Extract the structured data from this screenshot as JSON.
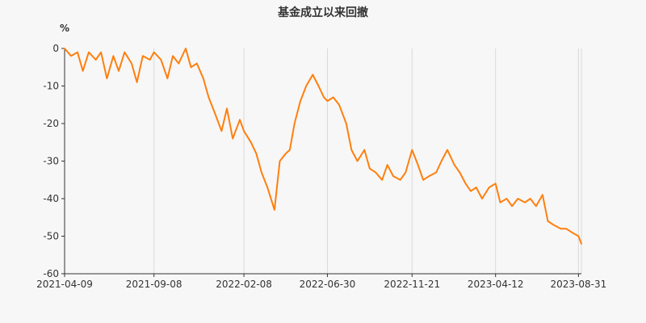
{
  "chart_data": {
    "type": "line",
    "title": "基金成立以来回撤",
    "ylabel": "%",
    "xlabel": "",
    "ylim": [
      -60,
      0
    ],
    "y_ticks": [
      "0",
      "-10",
      "-20",
      "-30",
      "-40",
      "-50",
      "-60"
    ],
    "x_ticks": [
      "2021-04-09",
      "2021-09-08",
      "2022-02-08",
      "2022-06-30",
      "2022-11-21",
      "2023-04-12",
      "2023-08-31"
    ],
    "x_start": "2021-04-09",
    "x_end": "2023-09-05",
    "grid": "vertical",
    "line_color": "#ff7f0e",
    "series": [
      {
        "name": "",
        "x": [
          "2021-04-09",
          "2021-04-20",
          "2021-05-01",
          "2021-05-10",
          "2021-05-20",
          "2021-06-01",
          "2021-06-10",
          "2021-06-20",
          "2021-07-01",
          "2021-07-10",
          "2021-07-20",
          "2021-08-01",
          "2021-08-10",
          "2021-08-20",
          "2021-09-01",
          "2021-09-08",
          "2021-09-20",
          "2021-10-01",
          "2021-10-10",
          "2021-10-20",
          "2021-11-01",
          "2021-11-10",
          "2021-11-20",
          "2021-12-01",
          "2021-12-10",
          "2021-12-20",
          "2022-01-01",
          "2022-01-10",
          "2022-01-20",
          "2022-02-01",
          "2022-02-08",
          "2022-02-20",
          "2022-03-01",
          "2022-03-10",
          "2022-03-20",
          "2022-04-01",
          "2022-04-10",
          "2022-04-20",
          "2022-04-27",
          "2022-05-05",
          "2022-05-15",
          "2022-05-25",
          "2022-06-05",
          "2022-06-15",
          "2022-06-24",
          "2022-06-30",
          "2022-07-10",
          "2022-07-20",
          "2022-08-01",
          "2022-08-10",
          "2022-08-20",
          "2022-09-01",
          "2022-09-10",
          "2022-09-20",
          "2022-10-01",
          "2022-10-10",
          "2022-10-20",
          "2022-11-01",
          "2022-11-10",
          "2022-11-21",
          "2022-12-01",
          "2022-12-10",
          "2022-12-20",
          "2023-01-01",
          "2023-01-10",
          "2023-01-20",
          "2023-02-01",
          "2023-02-10",
          "2023-02-20",
          "2023-03-01",
          "2023-03-10",
          "2023-03-20",
          "2023-04-01",
          "2023-04-12",
          "2023-04-20",
          "2023-05-01",
          "2023-05-10",
          "2023-05-20",
          "2023-06-01",
          "2023-06-10",
          "2023-06-20",
          "2023-07-01",
          "2023-07-10",
          "2023-07-20",
          "2023-08-01",
          "2023-08-10",
          "2023-08-20",
          "2023-08-31",
          "2023-09-05"
        ],
        "y": [
          0,
          -2,
          -1,
          -6,
          -1,
          -3,
          -1,
          -8,
          -2,
          -6,
          -1,
          -4,
          -9,
          -2,
          -3,
          -1,
          -3,
          -8,
          -2,
          -4,
          0,
          -5,
          -4,
          -8,
          -13,
          -17,
          -22,
          -16,
          -24,
          -19,
          -22,
          -25,
          -28,
          -33,
          -37,
          -43,
          -30,
          -28,
          -27,
          -20,
          -14,
          -10,
          -7,
          -10,
          -13,
          -14,
          -13,
          -15,
          -20,
          -27,
          -30,
          -27,
          -32,
          -33,
          -35,
          -31,
          -34,
          -35,
          -33,
          -27,
          -31,
          -35,
          -34,
          -33,
          -30,
          -27,
          -31,
          -33,
          -36,
          -38,
          -37,
          -40,
          -37,
          -36,
          -41,
          -40,
          -42,
          -40,
          -41,
          -40,
          -42,
          -39,
          -46,
          -47,
          -48,
          -48,
          -49,
          -50,
          -52
        ]
      }
    ]
  }
}
